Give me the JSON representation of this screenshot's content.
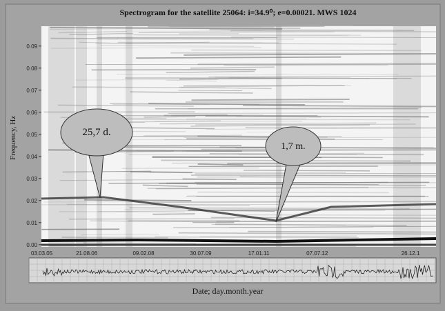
{
  "chart_data": {
    "type": "spectrogram",
    "title": "Spectrogram for the satellite 25064: i=34.9⁰; e=0.00021. MWS 1024",
    "ylabel": "Frequency, Hz",
    "xlabel": "Date; day.month.year",
    "categories": [
      "03.03.05",
      "21.08.06",
      "09.02.08",
      "30.07.09",
      "17.01.11",
      "07.07.12",
      "26.12.1"
    ],
    "ylim": [
      -0.001,
      0.099
    ],
    "yticks": [
      {
        "value": 0,
        "label": "0.00"
      },
      0.01,
      0.02,
      0.03,
      0.04,
      0.05,
      0.06,
      0.07,
      0.08,
      0.09
    ],
    "annotations": [
      "25,7 d.",
      "1,7 m."
    ]
  }
}
